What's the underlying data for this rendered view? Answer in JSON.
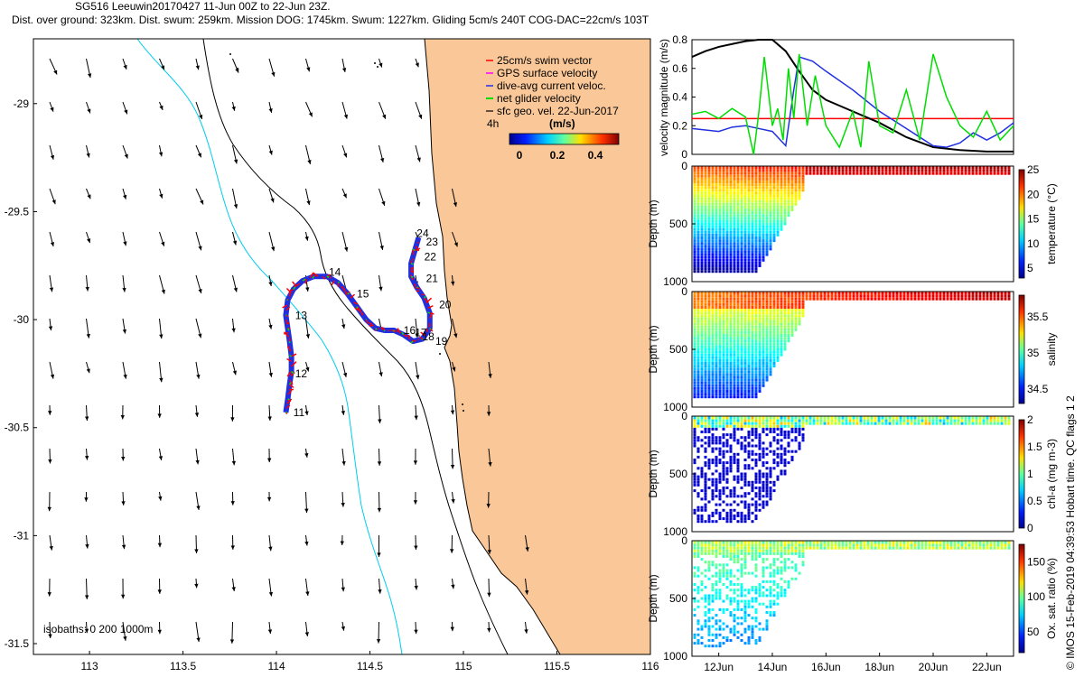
{
  "header": {
    "title": "SG516 Leeuwin20170427 11-Jun 00Z to 22-Jun 23Z.",
    "subtitle": "Dist. over ground: 323km. Dist. swum: 259km. Mission DOG: 1745km. Swum: 1227km. Gliding 5cm/s 240T COG-DAC=22cm/s 103T"
  },
  "credit": "© IMOS 15-Feb-2019 04:39:53 Hobart time. QC flags 1  2",
  "colors": {
    "land": "#fac898",
    "coast": "#000000",
    "isobath_200": "#000000",
    "isobath_1000": "#00ccee",
    "track": "#2030e0"
  },
  "chart_data": [
    {
      "type": "map",
      "name": "glider track map",
      "xlim": [
        112.7,
        116.0
      ],
      "ylim": [
        -31.55,
        -28.7
      ],
      "xticks": [
        "113",
        "113.5",
        "114",
        "114.5",
        "115",
        "115.5",
        "116"
      ],
      "yticks": [
        "-29",
        "-29.5",
        "-30",
        "-30.5",
        "-31",
        "-31.5"
      ],
      "legend": [
        "25cm/s swim vector",
        "GPS surface velocity",
        "dive-avg current veloc.",
        "net glider velocity",
        "sfc geo. vel. 22-Jun-2017"
      ],
      "legend_scale": "4h",
      "colorbar": {
        "title": "(m/s)",
        "ticks": [
          "0",
          "0.2",
          "0.4"
        ],
        "range": [
          0,
          0.5
        ]
      },
      "isobath_note": "isobaths: 0   200  1000m",
      "track": [
        [
          114.05,
          -30.43
        ],
        [
          114.06,
          -30.37
        ],
        [
          114.07,
          -30.3
        ],
        [
          114.08,
          -30.24
        ],
        [
          114.08,
          -30.17
        ],
        [
          114.07,
          -30.1
        ],
        [
          114.06,
          -30.04
        ],
        [
          114.05,
          -29.98
        ],
        [
          114.06,
          -29.91
        ],
        [
          114.09,
          -29.86
        ],
        [
          114.14,
          -29.82
        ],
        [
          114.2,
          -29.8
        ],
        [
          114.27,
          -29.8
        ],
        [
          114.33,
          -29.83
        ],
        [
          114.38,
          -29.88
        ],
        [
          114.43,
          -29.94
        ],
        [
          114.48,
          -30.0
        ],
        [
          114.53,
          -30.04
        ],
        [
          114.58,
          -30.05
        ],
        [
          114.63,
          -30.05
        ],
        [
          114.68,
          -30.07
        ],
        [
          114.73,
          -30.1
        ],
        [
          114.78,
          -30.09
        ],
        [
          114.82,
          -30.04
        ],
        [
          114.82,
          -29.97
        ],
        [
          114.79,
          -29.9
        ],
        [
          114.75,
          -29.85
        ],
        [
          114.72,
          -29.8
        ],
        [
          114.72,
          -29.74
        ],
        [
          114.74,
          -29.68
        ],
        [
          114.76,
          -29.62
        ]
      ],
      "track_labels": [
        {
          "text": "11",
          "lon": 114.09,
          "lat": -30.43
        },
        {
          "text": "12",
          "lon": 114.1,
          "lat": -30.25
        },
        {
          "text": "13",
          "lon": 114.1,
          "lat": -29.98
        },
        {
          "text": "14",
          "lon": 114.28,
          "lat": -29.78
        },
        {
          "text": "15",
          "lon": 114.43,
          "lat": -29.88
        },
        {
          "text": "16",
          "lon": 114.68,
          "lat": -30.05
        },
        {
          "text": "17",
          "lon": 114.74,
          "lat": -30.06
        },
        {
          "text": "18",
          "lon": 114.78,
          "lat": -30.08
        },
        {
          "text": "19",
          "lon": 114.85,
          "lat": -30.1
        },
        {
          "text": "20",
          "lon": 114.87,
          "lat": -29.93
        },
        {
          "text": "21",
          "lon": 114.8,
          "lat": -29.81
        },
        {
          "text": "22",
          "lon": 114.79,
          "lat": -29.71
        },
        {
          "text": "23",
          "lon": 114.8,
          "lat": -29.64
        },
        {
          "text": "24",
          "lon": 114.75,
          "lat": -29.6
        }
      ]
    },
    {
      "type": "line",
      "name": "velocity timeseries",
      "ylabel": "velocity magnitude (m/s)",
      "ylim": [
        0,
        0.8
      ],
      "yticks": [
        "0",
        "0.2",
        "0.4",
        "0.6",
        "0.8"
      ],
      "xlim": [
        11,
        23
      ],
      "series": [
        {
          "name": "25cm/s swim vector",
          "color": "#ff0000",
          "x": [
            11,
            23
          ],
          "y": [
            0.25,
            0.25
          ]
        },
        {
          "name": "sfc geo. vel.",
          "color": "#000000",
          "x": [
            11,
            11.5,
            12,
            12.5,
            13,
            13.5,
            14,
            14.5,
            15,
            15.5,
            16,
            17,
            18,
            19,
            20,
            21,
            22,
            23
          ],
          "y": [
            0.68,
            0.72,
            0.75,
            0.77,
            0.79,
            0.8,
            0.8,
            0.72,
            0.58,
            0.45,
            0.38,
            0.3,
            0.22,
            0.12,
            0.05,
            0.03,
            0.02,
            0.02
          ]
        },
        {
          "name": "dive-avg current veloc.",
          "color": "#2030e0",
          "x": [
            11,
            11.5,
            12,
            12.5,
            13,
            13.5,
            14,
            14.3,
            14.5,
            14.8,
            15,
            15.5,
            16,
            17,
            18,
            19,
            20,
            20.5,
            21,
            21.5,
            22,
            22.5,
            23
          ],
          "y": [
            0.18,
            0.17,
            0.16,
            0.19,
            0.2,
            0.18,
            0.16,
            0.1,
            0.06,
            0.45,
            0.68,
            0.65,
            0.58,
            0.45,
            0.3,
            0.18,
            0.06,
            0.05,
            0.08,
            0.15,
            0.1,
            0.15,
            0.22
          ]
        },
        {
          "name": "net glider velocity",
          "color": "#00dd00",
          "x": [
            11,
            11.5,
            12,
            12.5,
            13,
            13.3,
            13.5,
            13.7,
            14,
            14.2,
            14.4,
            14.6,
            14.8,
            15,
            15.3,
            15.6,
            16,
            16.5,
            17,
            17.3,
            17.6,
            18,
            18.5,
            19,
            19.5,
            20,
            20.5,
            21,
            21.5,
            22,
            22.5,
            23
          ],
          "y": [
            0.28,
            0.3,
            0.25,
            0.32,
            0.26,
            0.0,
            0.3,
            0.68,
            0.2,
            0.32,
            0.1,
            0.6,
            0.25,
            0.7,
            0.2,
            0.55,
            0.2,
            0.05,
            0.3,
            0.05,
            0.65,
            0.2,
            0.15,
            0.45,
            0.1,
            0.7,
            0.4,
            0.2,
            0.12,
            0.3,
            0.1,
            0.2
          ]
        }
      ]
    },
    {
      "type": "heatmap",
      "name": "temperature section",
      "ylabel": "Depth (m)",
      "clabel": "temperature (°C)",
      "yticks": [
        "0",
        "500",
        "1000"
      ],
      "cticks": [
        "5",
        "10",
        "15",
        "20",
        "25"
      ],
      "crange": [
        3,
        25
      ]
    },
    {
      "type": "heatmap",
      "name": "salinity section",
      "ylabel": "Depth (m)",
      "clabel": "salinity",
      "yticks": [
        "0",
        "500",
        "1000"
      ],
      "cticks": [
        "34.5",
        "35",
        "35.5"
      ],
      "crange": [
        34.3,
        35.8
      ]
    },
    {
      "type": "heatmap",
      "name": "chlorophyll section",
      "ylabel": "Depth (m)",
      "clabel": "chl-a (mg m-3)",
      "yticks": [
        "0",
        "500",
        "1000"
      ],
      "cticks": [
        "0",
        "0.5",
        "1",
        "1.5",
        "2"
      ],
      "crange": [
        0,
        2
      ]
    },
    {
      "type": "heatmap",
      "name": "oxygen section",
      "ylabel": "Depth (m)",
      "clabel": "Ox. sat. ratio (%)",
      "yticks": [
        "0",
        "500",
        "1000"
      ],
      "cticks": [
        "50",
        "100",
        "150"
      ],
      "crange": [
        20,
        175
      ],
      "xticks": [
        "12Jun",
        "14Jun",
        "16Jun",
        "18Jun",
        "20Jun",
        "22Jun"
      ]
    }
  ]
}
